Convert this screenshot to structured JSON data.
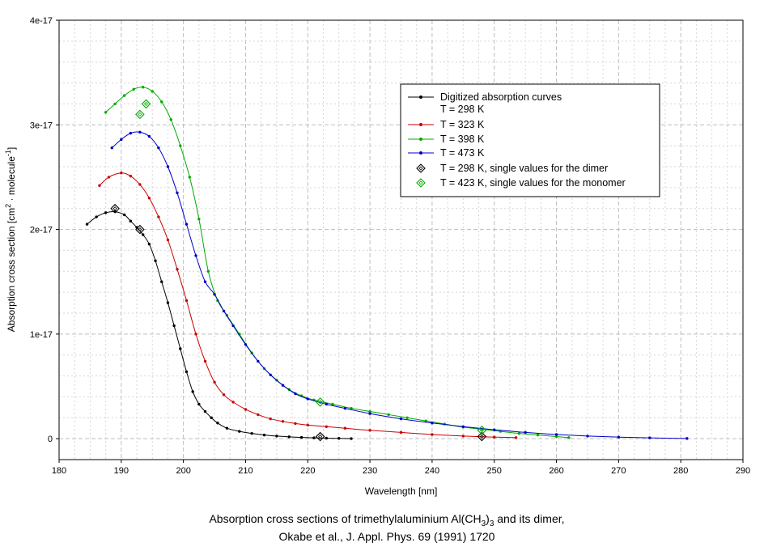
{
  "chart_data": {
    "type": "line",
    "xlabel": "Wavelength [nm]",
    "ylabel": "Absorption cross section [cm2 · molecule-1]",
    "xlim": [
      180,
      290
    ],
    "ylim": [
      -2e-18,
      4e-17
    ],
    "grid": true,
    "legend_position": "top-right",
    "x_ticks": [
      "180",
      "190",
      "200",
      "210",
      "220",
      "230",
      "240",
      "250",
      "260",
      "270",
      "280",
      "290"
    ],
    "y_ticks": [
      {
        "value": 0,
        "label": "0"
      },
      {
        "value": 1e-17,
        "label": "1e-17"
      },
      {
        "value": 2e-17,
        "label": "2e-17"
      },
      {
        "value": 3e-17,
        "label": "3e-17"
      },
      {
        "value": 4e-17,
        "label": "4e-17"
      }
    ],
    "caption_line1": "Absorption cross sections of trimethylaluminium Al(CH3)3 and its dimer,",
    "caption_line2": "Okabe et al., J. Appl. Phys. 69 (1991) 1720",
    "series": [
      {
        "name": "Digitized absorption curves T = 298 K",
        "legend_line1": "Digitized absorption curves",
        "legend_line2": "T = 298 K",
        "color": "#000000",
        "x": [
          184.5,
          186,
          187.5,
          189,
          190.5,
          191.5,
          192.5,
          193.5,
          194.5,
          195.5,
          196.5,
          197.5,
          198.5,
          199.5,
          200.5,
          201.5,
          202.5,
          203.5,
          204.5,
          205.5,
          207,
          209,
          211,
          213,
          215,
          217,
          219,
          221,
          223,
          225,
          227
        ],
        "y": [
          2.05e-17,
          2.12e-17,
          2.16e-17,
          2.17e-17,
          2.14e-17,
          2.08e-17,
          2.02e-17,
          1.95e-17,
          1.86e-17,
          1.7e-17,
          1.5e-17,
          1.3e-17,
          1.08e-17,
          8.6e-18,
          6.4e-18,
          4.5e-18,
          3.3e-18,
          2.6e-18,
          2e-18,
          1.5e-18,
          1e-18,
          7e-19,
          5e-19,
          3.5e-19,
          2.5e-19,
          1.8e-19,
          1.2e-19,
          8e-20,
          5e-20,
          3e-20,
          1e-20
        ]
      },
      {
        "name": "T = 323 K",
        "color": "#cc0000",
        "x": [
          186.5,
          188,
          190,
          191.5,
          193,
          194.5,
          196,
          197.5,
          199,
          200.5,
          202,
          203.5,
          205,
          206.5,
          208,
          210,
          212,
          214,
          216,
          218,
          220,
          223,
          226,
          230,
          235,
          240,
          245,
          250,
          253.5
        ],
        "y": [
          2.42e-17,
          2.5e-17,
          2.54e-17,
          2.51e-17,
          2.43e-17,
          2.3e-17,
          2.12e-17,
          1.9e-17,
          1.62e-17,
          1.32e-17,
          1e-17,
          7.4e-18,
          5.4e-18,
          4.2e-18,
          3.5e-18,
          2.8e-18,
          2.3e-18,
          1.9e-18,
          1.65e-18,
          1.45e-18,
          1.3e-18,
          1.15e-18,
          1e-18,
          8e-19,
          6e-19,
          4e-19,
          2.5e-19,
          1.5e-19,
          1e-19
        ]
      },
      {
        "name": "T = 398 K",
        "color": "#00aa00",
        "x": [
          187.5,
          189,
          190.5,
          192,
          193.5,
          195,
          196.5,
          198,
          199.5,
          201,
          202.5,
          204,
          205.5,
          207,
          209,
          211,
          213,
          215,
          217,
          219,
          221,
          224,
          227,
          230,
          233,
          236,
          239,
          242,
          245,
          248,
          251,
          254,
          257,
          260,
          262
        ],
        "y": [
          3.12e-17,
          3.2e-17,
          3.28e-17,
          3.34e-17,
          3.36e-17,
          3.32e-17,
          3.22e-17,
          3.05e-17,
          2.8e-17,
          2.5e-17,
          2.1e-17,
          1.6e-17,
          1.32e-17,
          1.18e-17,
          1e-17,
          8.2e-18,
          6.7e-18,
          5.6e-18,
          4.7e-18,
          4.1e-18,
          3.7e-18,
          3.3e-18,
          2.9e-18,
          2.6e-18,
          2.3e-18,
          2e-18,
          1.7e-18,
          1.4e-18,
          1.1e-18,
          9e-19,
          7e-19,
          5e-19,
          3.5e-19,
          2e-19,
          1e-19
        ]
      },
      {
        "name": "T = 473 K",
        "color": "#0000cc",
        "x": [
          188.5,
          190,
          191.5,
          193,
          194.5,
          196,
          197.5,
          199,
          200.5,
          202,
          203.5,
          205,
          206.5,
          208,
          210,
          212,
          214,
          216,
          218,
          220,
          223,
          226,
          230,
          235,
          240,
          245,
          250,
          255,
          260,
          265,
          270,
          275,
          281
        ],
        "y": [
          2.78e-17,
          2.86e-17,
          2.92e-17,
          2.93e-17,
          2.89e-17,
          2.78e-17,
          2.6e-17,
          2.35e-17,
          2.05e-17,
          1.75e-17,
          1.5e-17,
          1.38e-17,
          1.22e-17,
          1.08e-17,
          9e-18,
          7.4e-18,
          6.1e-18,
          5.1e-18,
          4.3e-18,
          3.8e-18,
          3.3e-18,
          2.9e-18,
          2.4e-18,
          1.9e-18,
          1.5e-18,
          1.15e-18,
          8.5e-19,
          6e-19,
          4e-19,
          2.5e-19,
          1.5e-19,
          8e-20,
          2e-20
        ]
      },
      {
        "name": "T = 298 K, single values for the dimer",
        "type": "scatter",
        "marker": "diamond",
        "color": "#000000",
        "x": [
          189,
          193,
          222,
          248
        ],
        "y": [
          2.2e-17,
          2e-17,
          2e-19,
          2e-19
        ]
      },
      {
        "name": "T = 423 K, single values for the monomer",
        "type": "scatter",
        "marker": "diamond",
        "color": "#00aa00",
        "x": [
          193,
          194,
          222,
          248
        ],
        "y": [
          3.1e-17,
          3.2e-17,
          3.5e-18,
          8e-19
        ]
      }
    ]
  }
}
